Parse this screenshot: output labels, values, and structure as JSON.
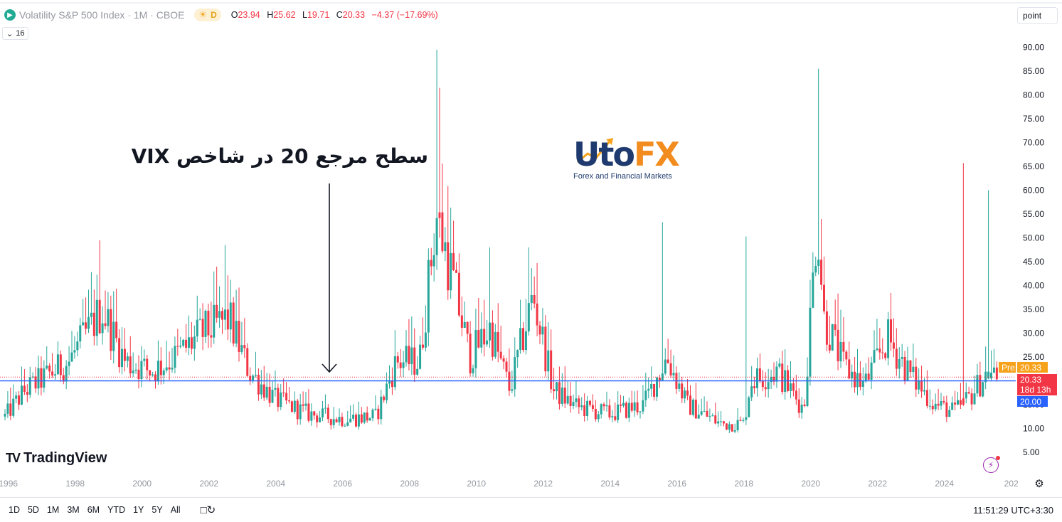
{
  "header": {
    "symbol_title": "Volatility S&P 500 Index · 1M · CBOE",
    "daily_badge": "D",
    "ohlc": [
      {
        "k": "O",
        "v": "23.94"
      },
      {
        "k": "H",
        "v": "25.62"
      },
      {
        "k": "L",
        "v": "19.71"
      },
      {
        "k": "C",
        "v": "20.33"
      },
      {
        "k": "",
        "v": "−4.37 (−17.69%)"
      }
    ],
    "indicator_count": "16",
    "scale_mode": "point"
  },
  "annotation": "سطح مرجع 20 در شاخص VIX",
  "watermark": {
    "brand_u": "U",
    "brand_to": "to",
    "brand_fx": "FX",
    "tagline": "Forex and Financial Markets"
  },
  "tv_brand": "TradingView",
  "price_tags": {
    "pre_label": "Pre",
    "pre_value": "20.33",
    "last_value": "20.33",
    "countdown": "18d 13h",
    "line_value": "20.00"
  },
  "timeframes": [
    "1D",
    "5D",
    "1M",
    "3M",
    "6M",
    "YTD",
    "1Y",
    "5Y",
    "All"
  ],
  "clock": "11:51:29 UTC+3:30",
  "colors": {
    "up": "#26a69a",
    "down": "#f23645",
    "line": "#2962ff",
    "pre": "#f7a21b",
    "axis_text": "#131722",
    "year_text": "#9598a1"
  },
  "chart_data": {
    "type": "candlestick",
    "timeframe": "1M",
    "y_ticks": [
      "5.00",
      "10.00",
      "15.00",
      "20.00",
      "25.00",
      "30.00",
      "35.00",
      "40.00",
      "45.00",
      "50.00",
      "55.00",
      "60.00",
      "65.00",
      "70.00",
      "75.00",
      "80.00",
      "85.00",
      "90.00"
    ],
    "ylim": [
      0,
      94
    ],
    "x_ticks": [
      "1996",
      "1998",
      "2000",
      "2002",
      "2004",
      "2006",
      "2008",
      "2010",
      "2012",
      "2014",
      "2016",
      "2018",
      "2020",
      "2022",
      "2024",
      "202"
    ],
    "x_start_year": 1995.9,
    "horizontal_line": 20,
    "last_price": 20.33,
    "anchors": [
      [
        1995.9,
        12.5
      ],
      [
        1996.5,
        18
      ],
      [
        1997.8,
        24
      ],
      [
        1998.8,
        35
      ],
      [
        1999.5,
        24
      ],
      [
        2000.3,
        22
      ],
      [
        2001.0,
        25
      ],
      [
        2001.8,
        30
      ],
      [
        2002.6,
        33
      ],
      [
        2003.2,
        22
      ],
      [
        2004.0,
        16
      ],
      [
        2005.0,
        13
      ],
      [
        2006.0,
        12
      ],
      [
        2007.0,
        12.5
      ],
      [
        2007.6,
        24
      ],
      [
        2008.3,
        24
      ],
      [
        2008.8,
        55
      ],
      [
        2009.2,
        44
      ],
      [
        2009.8,
        25
      ],
      [
        2010.4,
        31
      ],
      [
        2011.0,
        18
      ],
      [
        2011.7,
        38
      ],
      [
        2012.3,
        18
      ],
      [
        2013.0,
        14.5
      ],
      [
        2014.0,
        13
      ],
      [
        2015.0,
        15
      ],
      [
        2015.7,
        25
      ],
      [
        2016.3,
        15
      ],
      [
        2017.3,
        11
      ],
      [
        2018.0,
        11
      ],
      [
        2018.2,
        20
      ],
      [
        2019.0,
        22
      ],
      [
        2019.8,
        14
      ],
      [
        2020.2,
        55
      ],
      [
        2020.4,
        33
      ],
      [
        2021.0,
        23
      ],
      [
        2021.6,
        19
      ],
      [
        2022.3,
        29
      ],
      [
        2023.0,
        21
      ],
      [
        2023.7,
        15
      ],
      [
        2024.3,
        13.5
      ],
      [
        2024.8,
        17
      ],
      [
        2025.3,
        22
      ],
      [
        2025.6,
        20.33
      ]
    ],
    "spikes": [
      {
        "year": 1998.7,
        "high": 49.5,
        "up": false
      },
      {
        "year": 2002.5,
        "high": 48.5,
        "up": true
      },
      {
        "year": 2008.8,
        "high": 89.5,
        "up": true
      },
      {
        "year": 2008.9,
        "high": 81.5,
        "up": false
      },
      {
        "year": 2010.4,
        "high": 48,
        "up": true
      },
      {
        "year": 2011.6,
        "high": 48,
        "up": true
      },
      {
        "year": 2015.6,
        "high": 53.3,
        "up": true
      },
      {
        "year": 2018.1,
        "high": 50.3,
        "up": true
      },
      {
        "year": 2020.2,
        "high": 85.5,
        "up": true
      },
      {
        "year": 2024.6,
        "high": 65.7,
        "up": false
      },
      {
        "year": 2025.3,
        "high": 60,
        "up": true
      }
    ]
  }
}
